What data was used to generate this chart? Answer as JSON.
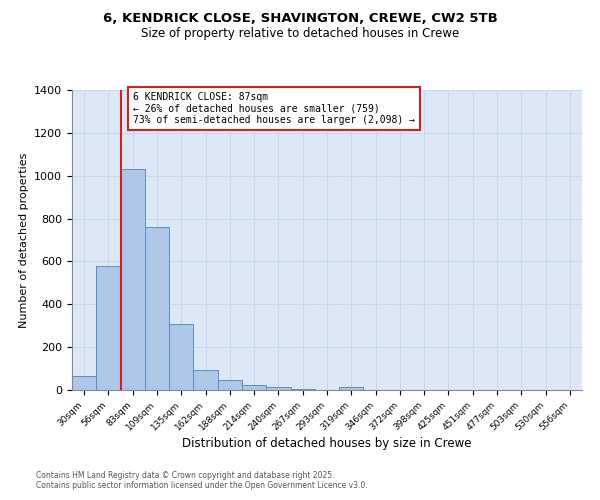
{
  "title1": "6, KENDRICK CLOSE, SHAVINGTON, CREWE, CW2 5TB",
  "title2": "Size of property relative to detached houses in Crewe",
  "xlabel": "Distribution of detached houses by size in Crewe",
  "ylabel": "Number of detached properties",
  "bin_labels": [
    "30sqm",
    "56sqm",
    "83sqm",
    "109sqm",
    "135sqm",
    "162sqm",
    "188sqm",
    "214sqm",
    "240sqm",
    "267sqm",
    "293sqm",
    "319sqm",
    "346sqm",
    "372sqm",
    "398sqm",
    "425sqm",
    "451sqm",
    "477sqm",
    "503sqm",
    "530sqm",
    "556sqm"
  ],
  "bin_values": [
    65,
    580,
    1030,
    760,
    310,
    95,
    45,
    22,
    14,
    5,
    0,
    12,
    0,
    0,
    0,
    0,
    0,
    0,
    0,
    0,
    0
  ],
  "bar_color": "#aec6e8",
  "bar_edge_color": "#5a8fc4",
  "grid_color": "#c8d8ea",
  "background_color": "#dce8f5",
  "fig_background": "#ffffff",
  "vline_color": "#cc2222",
  "annotation_text": "6 KENDRICK CLOSE: 87sqm\n← 26% of detached houses are smaller (759)\n73% of semi-detached houses are larger (2,098) →",
  "annotation_box_color": "#ffffff",
  "annotation_box_edge": "#cc2222",
  "ylim": [
    0,
    1400
  ],
  "yticks": [
    0,
    200,
    400,
    600,
    800,
    1000,
    1200,
    1400
  ],
  "footer": "Contains HM Land Registry data © Crown copyright and database right 2025.\nContains public sector information licensed under the Open Government Licence v3.0."
}
